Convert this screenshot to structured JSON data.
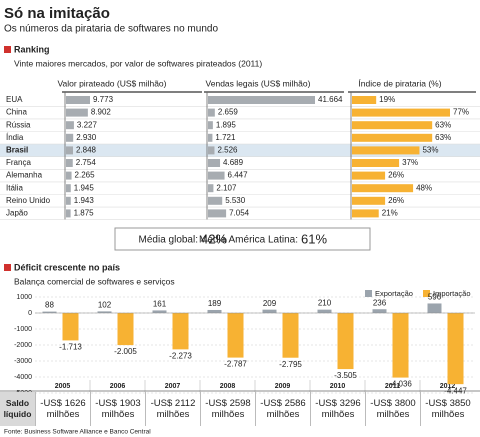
{
  "title": "Só na imitação",
  "subtitle": "Os números da pirataria de softwares no mundo",
  "ranking": {
    "heading": "Ranking",
    "note": "Vinte maiores mercados, por valor de  softwares pirateados  (2011)",
    "highlight_index": 4
  },
  "summary": [
    {
      "label": "Média global:",
      "value": "42%"
    },
    {
      "label": "Média América Latina:",
      "value": "61%"
    }
  ],
  "deficit": {
    "heading": "Déficit crescente no país",
    "note": "Balança comercial de softwares e serviços"
  },
  "saldo": {
    "label": "Saldo líquido",
    "values": [
      "-US$ 1626 milhões",
      "-US$ 1903 milhões",
      "-US$ 2112 milhões",
      "-US$ 2598 milhões",
      "-US$ 2586 milhões",
      "-US$ 3296 milhões",
      "-US$ 3800 milhões",
      "-US$ 3850 milhões"
    ]
  },
  "source": "Fonte: Business Software Alliance e Banco Central",
  "chart_data": [
    {
      "type": "hbar",
      "title": "Valor pirateado (US$ milhão)",
      "categories": [
        "EUA",
        "China",
        "Rússia",
        "Índia",
        "Brasil",
        "França",
        "Alemanha",
        "Itália",
        "Reino Unido",
        "Japão"
      ],
      "values": [
        9773,
        8902,
        3227,
        2930,
        2848,
        2754,
        2265,
        1945,
        1943,
        1875
      ],
      "value_labels": [
        "9.773",
        "8.902",
        "3.227",
        "2.930",
        "2.848",
        "2.754",
        "2.265",
        "1.945",
        "1.943",
        "1.875"
      ],
      "color": "#a7acb1"
    },
    {
      "type": "hbar",
      "title": "Vendas legais (US$ milhão)",
      "values": [
        41664,
        2659,
        1895,
        1721,
        2526,
        4689,
        6447,
        2107,
        5530,
        7054
      ],
      "value_labels": [
        "41.664",
        "2.659",
        "1.895",
        "1.721",
        "2.526",
        "4.689",
        "6.447",
        "2.107",
        "5.530",
        "7.054"
      ],
      "color": "#a7acb1"
    },
    {
      "type": "hbar",
      "title": "Índice de pirataria (%)",
      "values": [
        19,
        77,
        63,
        63,
        53,
        37,
        26,
        48,
        26,
        21
      ],
      "value_labels": [
        "19%",
        "77%",
        "63%",
        "63%",
        "53%",
        "37%",
        "26%",
        "48%",
        "26%",
        "21%"
      ],
      "color": "#f7b233"
    },
    {
      "type": "bar",
      "categories": [
        "2005",
        "2006",
        "2007",
        "2008",
        "2009",
        "2010",
        "2011",
        "2012"
      ],
      "series": [
        {
          "name": "Exportação",
          "color": "#9ba4ad",
          "values": [
            88,
            102,
            161,
            189,
            209,
            210,
            236,
            596
          ]
        },
        {
          "name": "Importação",
          "color": "#f7b233",
          "values": [
            -1713,
            -2005,
            -2273,
            -2787,
            -2795,
            -3505,
            -4036,
            -4447
          ],
          "value_labels": [
            "-1.713",
            "-2.005",
            "-2.273",
            "-2.787",
            "-2.795",
            "-3.505",
            "-4.036",
            "-4.447"
          ]
        }
      ],
      "ylim": [
        -5000,
        1000
      ],
      "yticks": [
        1000,
        0,
        -1000,
        -2000,
        -3000,
        -4000,
        -5000
      ],
      "grid": true,
      "legend": "top-right"
    }
  ]
}
